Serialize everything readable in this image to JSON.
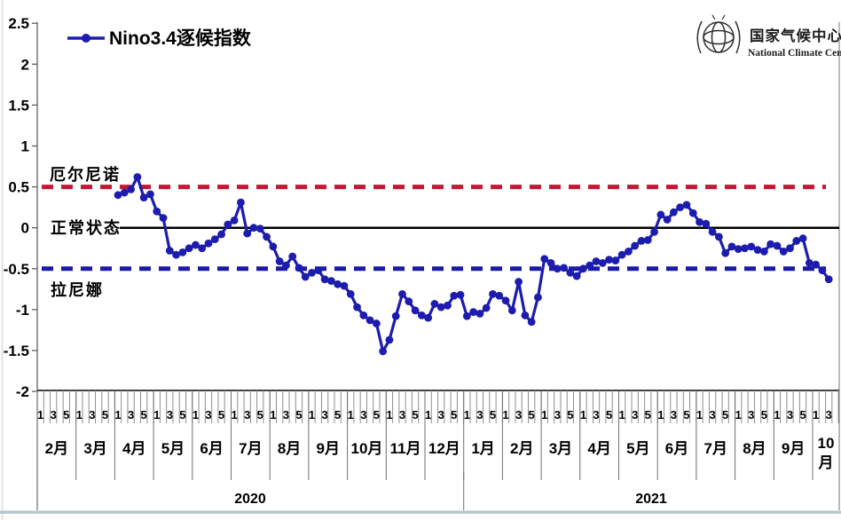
{
  "legend": {
    "label": "Nino3.4逐候指数"
  },
  "logo": {
    "name_cn": "国家气候中心",
    "name_en": "National Climate Center"
  },
  "annotations": {
    "el_nino": "厄尔尼诺",
    "normal": "正常状态",
    "la_nina": "拉尼娜"
  },
  "colors": {
    "series": "#1c1cae",
    "el_nino_line": "#c41834",
    "la_nina_line": "#1a1aa6",
    "axis": "#000000",
    "frame_band": "#b7c6cf"
  },
  "chart_data": {
    "type": "line",
    "legend": "Nino3.4逐候指数",
    "x_unit": "pentad(候) within month",
    "y_axis": {
      "min": -2,
      "max": 2.5,
      "step": 0.5,
      "tick_labels": [
        "2.5",
        "2",
        "1.5",
        "1",
        "0.5",
        "0",
        "-0.5",
        "-1",
        "-1.5",
        "-2"
      ]
    },
    "reference_lines": [
      {
        "value": 0.5,
        "label": "厄尔尼诺",
        "style": "dashed",
        "color": "#c41834"
      },
      {
        "value": 0,
        "label": "正常状态",
        "style": "solid",
        "color": "#000000"
      },
      {
        "value": -0.5,
        "label": "拉尼娜",
        "style": "dashed",
        "color": "#1a1aa6"
      }
    ],
    "x_axis": {
      "pentad_tick_labels": [
        "1",
        "3",
        "5"
      ],
      "years": [
        {
          "label": "2020",
          "months": [
            "2月",
            "3月",
            "4月",
            "5月",
            "6月",
            "7月",
            "8月",
            "9月",
            "10月",
            "11月",
            "12月"
          ]
        },
        {
          "label": "2021",
          "months": [
            "1月",
            "2月",
            "3月",
            "4月",
            "5月",
            "6月",
            "7月",
            "8月",
            "9月",
            "10月"
          ]
        }
      ]
    },
    "series": [
      {
        "name": "Nino3.4逐候指数",
        "color": "#1c1cae",
        "start": {
          "year": 2020,
          "month": 4,
          "pentad": 1
        },
        "values": [
          0.4,
          0.43,
          0.47,
          0.62,
          0.37,
          0.41,
          0.2,
          0.12,
          -0.28,
          -0.33,
          -0.3,
          -0.25,
          -0.21,
          -0.25,
          -0.19,
          -0.14,
          -0.08,
          0.04,
          0.09,
          0.31,
          -0.07,
          0.0,
          -0.01,
          -0.11,
          -0.23,
          -0.41,
          -0.46,
          -0.35,
          -0.49,
          -0.6,
          -0.55,
          -0.52,
          -0.63,
          -0.65,
          -0.69,
          -0.71,
          -0.81,
          -0.97,
          -1.07,
          -1.13,
          -1.17,
          -1.51,
          -1.37,
          -1.08,
          -0.81,
          -0.9,
          -1.01,
          -1.07,
          -1.1,
          -0.93,
          -0.97,
          -0.95,
          -0.83,
          -0.82,
          -1.08,
          -1.03,
          -1.05,
          -0.98,
          -0.81,
          -0.83,
          -0.89,
          -1.01,
          -0.66,
          -1.07,
          -1.15,
          -0.85,
          -0.38,
          -0.43,
          -0.5,
          -0.49,
          -0.55,
          -0.59,
          -0.5,
          -0.46,
          -0.41,
          -0.43,
          -0.39,
          -0.4,
          -0.33,
          -0.29,
          -0.22,
          -0.16,
          -0.15,
          -0.05,
          0.16,
          0.1,
          0.19,
          0.25,
          0.28,
          0.18,
          0.07,
          0.05,
          -0.05,
          -0.11,
          -0.31,
          -0.23,
          -0.26,
          -0.25,
          -0.23,
          -0.27,
          -0.29,
          -0.2,
          -0.22,
          -0.29,
          -0.25,
          -0.16,
          -0.13,
          -0.43,
          -0.45,
          -0.52,
          -0.63
        ]
      }
    ]
  }
}
